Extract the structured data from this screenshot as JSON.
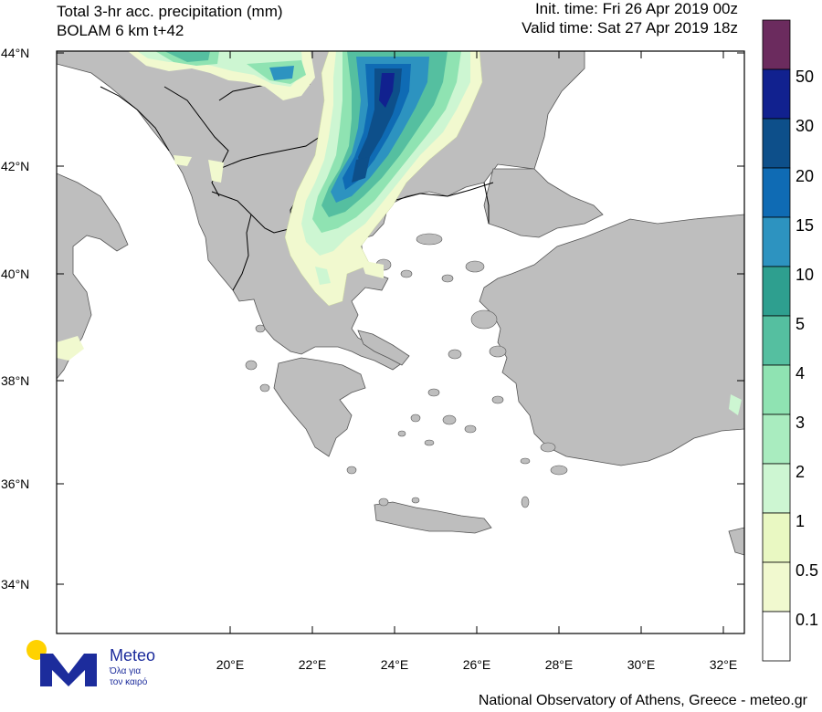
{
  "header": {
    "title_line1": "Total 3-hr acc. precipitation (mm)",
    "title_line2": "BOLAM 6 km t+42",
    "init_time": "Init. time: Fri 26 Apr 2019 00z",
    "valid_time": "Valid time: Sat 27 Apr 2019 18z"
  },
  "axes": {
    "lat_labels": [
      "44°N",
      "42°N",
      "40°N",
      "38°N",
      "36°N",
      "34°N"
    ],
    "lon_labels": [
      "20°E",
      "22°E",
      "24°E",
      "26°E",
      "28°E",
      "30°E",
      "32°E"
    ]
  },
  "legend": {
    "labels": [
      "50",
      "30",
      "20",
      "15",
      "10",
      "5",
      "4",
      "3",
      "2",
      "1",
      "0.5",
      "0.1"
    ],
    "colors": [
      "#6b2b5e",
      "#11218f",
      "#0d4f8a",
      "#0f6bb4",
      "#2d93c0",
      "#2e9f8f",
      "#55bfa0",
      "#8fe3b2",
      "#a9ecbf",
      "#cdf6d2",
      "#e9f8c2",
      "#f1f9cf",
      "#ffffff"
    ]
  },
  "map": {
    "land_color": "#bebebe",
    "sea_color": "#ffffff",
    "border_color": "#000000"
  },
  "logo": {
    "name": "Meteo",
    "tagline1": "Όλα για",
    "tagline2": "τον καιρό",
    "sun_color": "#ffd200",
    "mark_color": "#1c2c9c"
  },
  "footer": {
    "credit": "National Observatory of Athens, Greece - meteo.gr"
  }
}
